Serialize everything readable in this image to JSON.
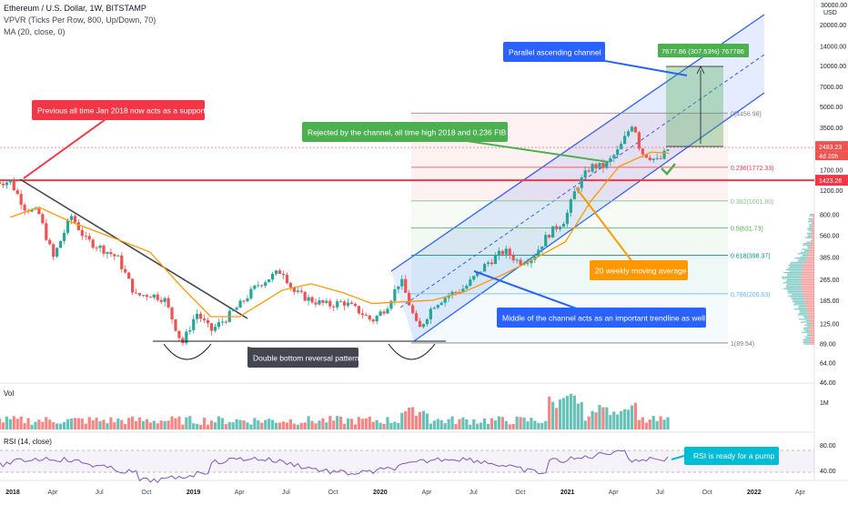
{
  "header": {
    "symbol_line": "Ethereum / U.S. Dollar, 1W, BITSTAMP",
    "vpvr_line": "VPVR (Ticks Per Row, 800, Up/Down, 70)",
    "ma_line": "MA (20, close, 0)"
  },
  "price_axis": {
    "unit": "USD",
    "ticks": [
      "30000.00",
      "20000.00",
      "14000.00",
      "10000.00",
      "7000.00",
      "5000.00",
      "3500.00",
      "2483.23",
      "1700.00",
      "1423.26",
      "1200.00",
      "800.00",
      "560.00",
      "385.00",
      "265.00",
      "185.00",
      "125.00",
      "89.00",
      "64.00",
      "46.00"
    ],
    "price_badge": "2483.23",
    "countdown_badge": "4d 20h",
    "support_badge": "1423.26"
  },
  "time_axis": {
    "labels": [
      "2018",
      "Apr",
      "Jul",
      "Oct",
      "2019",
      "Apr",
      "Jul",
      "Oct",
      "2020",
      "Apr",
      "Jul",
      "Oct",
      "2021",
      "Apr",
      "Jul",
      "Oct",
      "2022",
      "Apr"
    ]
  },
  "fib_levels": [
    {
      "label": "0(4456.98)",
      "color": "#787b86"
    },
    {
      "label": "0.236(1772.33)",
      "color": "#f23645"
    },
    {
      "label": "0.382(1001.80)",
      "color": "#81c784"
    },
    {
      "label": "0.5(631.73)",
      "color": "#4caf50"
    },
    {
      "label": "0.618(398.37)",
      "color": "#009688"
    },
    {
      "label": "0.786(206.63)",
      "color": "#64b5f6"
    },
    {
      "label": "1(89.54)",
      "color": "#787b86"
    }
  ],
  "annotations": {
    "previous_ath": "Previous all time Jan 2018 now acts as a support",
    "parallel_channel": "Parallel ascending channel",
    "rejected": "Rejected by the channel, all time high 2018 and 0.236 FIB",
    "ma20": "20 weekly moving average",
    "middle_channel": "Middle of the channel acts as an important trendline as well",
    "double_bottom": "Double bottom reversal pattern",
    "rsi_pump": "RSI is ready for a pump",
    "measure": "7677.86 (307.53%) 767786"
  },
  "volume_panel": {
    "label": "Vol",
    "scale": "1M"
  },
  "rsi_panel": {
    "label": "RSI (14, close)",
    "ticks": [
      "80.00",
      "40.00"
    ]
  },
  "colors": {
    "up": "#26a69a",
    "down": "#ef5350",
    "ma": "#ff9800",
    "channel": "#2962ff",
    "support": "#f23645",
    "note_red": "#f23645",
    "note_blue": "#2962ff",
    "note_green": "#4caf50",
    "note_orange": "#ff9800",
    "note_dark": "#434651",
    "note_cyan": "#00bcd4",
    "rsi": "#7e57c2"
  },
  "chart_data": {
    "type": "candlestick",
    "title": "Ethereum / U.S. Dollar, 1W, BITSTAMP",
    "price_scale": "log",
    "y_range": [
      46,
      30000
    ],
    "x_range": [
      "2018-01-01",
      "2022-04-30"
    ],
    "close_series": {
      "name": "ETH/USD weekly close (approx.)",
      "points": [
        [
          "2018-01-08",
          1390
        ],
        [
          "2018-02-05",
          900
        ],
        [
          "2018-03-05",
          800
        ],
        [
          "2018-04-02",
          380
        ],
        [
          "2018-05-07",
          780
        ],
        [
          "2018-06-04",
          520
        ],
        [
          "2018-07-09",
          440
        ],
        [
          "2018-08-06",
          380
        ],
        [
          "2018-09-10",
          200
        ],
        [
          "2018-10-08",
          205
        ],
        [
          "2018-11-05",
          190
        ],
        [
          "2018-12-10",
          88
        ],
        [
          "2019-01-07",
          150
        ],
        [
          "2019-02-04",
          110
        ],
        [
          "2019-03-04",
          135
        ],
        [
          "2019-04-01",
          170
        ],
        [
          "2019-05-06",
          240
        ],
        [
          "2019-06-24",
          310
        ],
        [
          "2019-07-15",
          215
        ],
        [
          "2019-08-19",
          185
        ],
        [
          "2019-09-23",
          170
        ],
        [
          "2019-10-21",
          180
        ],
        [
          "2019-11-25",
          150
        ],
        [
          "2019-12-16",
          130
        ],
        [
          "2020-01-13",
          165
        ],
        [
          "2020-02-10",
          265
        ],
        [
          "2020-03-16",
          110
        ],
        [
          "2020-04-13",
          170
        ],
        [
          "2020-05-11",
          200
        ],
        [
          "2020-06-15",
          230
        ],
        [
          "2020-07-27",
          345
        ],
        [
          "2020-08-31",
          430
        ],
        [
          "2020-09-28",
          355
        ],
        [
          "2020-10-26",
          385
        ],
        [
          "2020-11-23",
          560
        ],
        [
          "2020-12-28",
          740
        ],
        [
          "2021-01-18",
          1250
        ],
        [
          "2021-02-15",
          1800
        ],
        [
          "2021-03-15",
          1800
        ],
        [
          "2021-04-12",
          2400
        ],
        [
          "2021-05-10",
          3900
        ],
        [
          "2021-05-24",
          2300
        ],
        [
          "2021-06-14",
          2100
        ],
        [
          "2021-06-28",
          1950
        ],
        [
          "2021-07-19",
          2483.23
        ]
      ]
    },
    "ma20_series": {
      "name": "MA (20, close, 0)",
      "points": [
        [
          "2018-01-08",
          760
        ],
        [
          "2018-03-05",
          900
        ],
        [
          "2018-05-07",
          700
        ],
        [
          "2018-08-06",
          520
        ],
        [
          "2018-10-08",
          420
        ],
        [
          "2018-12-10",
          230
        ],
        [
          "2019-02-04",
          140
        ],
        [
          "2019-04-01",
          140
        ],
        [
          "2019-06-24",
          220
        ],
        [
          "2019-08-19",
          245
        ],
        [
          "2019-10-21",
          210
        ],
        [
          "2019-12-16",
          175
        ],
        [
          "2020-02-10",
          180
        ],
        [
          "2020-04-13",
          185
        ],
        [
          "2020-06-15",
          215
        ],
        [
          "2020-08-31",
          290
        ],
        [
          "2020-10-26",
          370
        ],
        [
          "2020-12-28",
          500
        ],
        [
          "2021-02-15",
          990
        ],
        [
          "2021-04-12",
          1800
        ],
        [
          "2021-06-14",
          2300
        ],
        [
          "2021-07-19",
          2250
        ]
      ]
    },
    "horizontal_support": 1423.26,
    "fibonacci_levels": [
      {
        "ratio": 0,
        "price": 4456.98
      },
      {
        "ratio": 0.236,
        "price": 1772.33
      },
      {
        "ratio": 0.382,
        "price": 1001.8
      },
      {
        "ratio": 0.5,
        "price": 631.73
      },
      {
        "ratio": 0.618,
        "price": 398.37
      },
      {
        "ratio": 0.786,
        "price": 206.63
      },
      {
        "ratio": 1,
        "price": 89.54
      }
    ],
    "rsi_ticks": [
      80,
      40
    ],
    "x_tick_labels": [
      "2018",
      "Apr",
      "Jul",
      "Oct",
      "2019",
      "Apr",
      "Jul",
      "Oct",
      "2020",
      "Apr",
      "Jul",
      "Oct",
      "2021",
      "Apr",
      "Jul",
      "Oct",
      "2022",
      "Apr"
    ]
  }
}
